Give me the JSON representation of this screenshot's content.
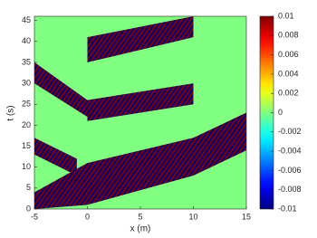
{
  "chart_data": {
    "type": "heatmap",
    "x_label": "x (m)",
    "y_label": "t (s)",
    "xlim": [
      -5,
      15
    ],
    "xticks": [
      -5,
      0,
      5,
      10,
      15
    ],
    "ylim": [
      0,
      46
    ],
    "yticks": [
      0,
      5,
      10,
      15,
      20,
      25,
      30,
      35,
      40,
      45
    ],
    "colormap": "jet",
    "background_value": 0,
    "band_colors": [
      "#7f0000",
      "#00007f"
    ],
    "bands": [
      {
        "x": [
          -5,
          0,
          10,
          15,
          15,
          10,
          0,
          -5
        ],
        "y": [
          0,
          1,
          8,
          14,
          23,
          17,
          11,
          4
        ]
      },
      {
        "x": [
          -5,
          -1,
          -1,
          -5
        ],
        "y": [
          13,
          8,
          12,
          17
        ]
      },
      {
        "x": [
          -5,
          0,
          0,
          -5
        ],
        "y": [
          30,
          22,
          26,
          35
        ]
      },
      {
        "x": [
          0,
          10,
          10,
          0
        ],
        "y": [
          21,
          25,
          30,
          26
        ]
      },
      {
        "x": [
          0,
          10,
          10,
          0
        ],
        "y": [
          35,
          41,
          46,
          41
        ]
      }
    ],
    "colorbar": {
      "clim": [
        -0.01,
        0.01
      ],
      "ticks": [
        -0.01,
        -0.008,
        -0.006,
        -0.004,
        -0.002,
        0,
        0.002,
        0.004,
        0.006,
        0.008,
        0.01
      ]
    }
  }
}
